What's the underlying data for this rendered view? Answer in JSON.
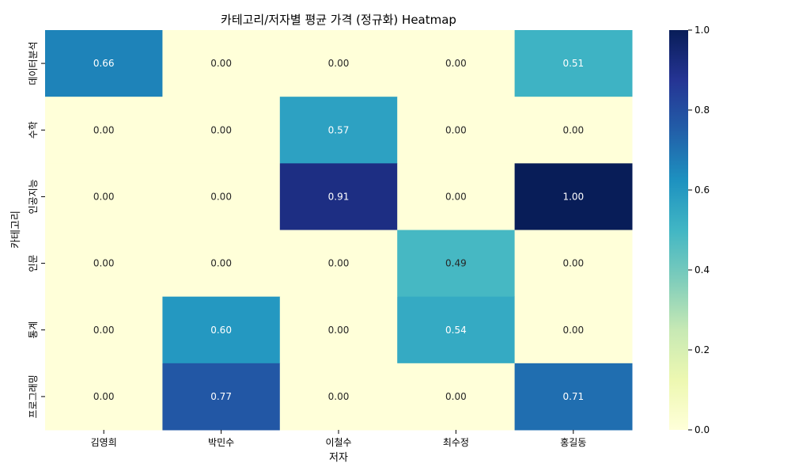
{
  "chart_data": {
    "type": "heatmap",
    "title": "카테고리/저자별 평균 가격 (정규화) Heatmap",
    "xlabel": "저자",
    "ylabel": "카테고리",
    "x_categories": [
      "김영희",
      "박민수",
      "이철수",
      "최수정",
      "홍길동"
    ],
    "y_categories": [
      "데이터분석",
      "수학",
      "인공지능",
      "인문",
      "통계",
      "프로그래밍"
    ],
    "values": [
      [
        0.66,
        0.0,
        0.0,
        0.0,
        0.51
      ],
      [
        0.0,
        0.0,
        0.57,
        0.0,
        0.0
      ],
      [
        0.0,
        0.0,
        0.91,
        0.0,
        1.0
      ],
      [
        0.0,
        0.0,
        0.0,
        0.49,
        0.0
      ],
      [
        0.0,
        0.6,
        0.0,
        0.54,
        0.0
      ],
      [
        0.0,
        0.77,
        0.0,
        0.0,
        0.71
      ]
    ],
    "annotation_format": "2 decimals",
    "colormap": "YlGnBu",
    "colorbar": {
      "range": [
        0.0,
        1.0
      ],
      "ticks": [
        0.0,
        0.2,
        0.4,
        0.6,
        0.8,
        1.0
      ],
      "tick_labels": [
        "0.0",
        "0.2",
        "0.4",
        "0.6",
        "0.8",
        "1.0"
      ]
    }
  }
}
